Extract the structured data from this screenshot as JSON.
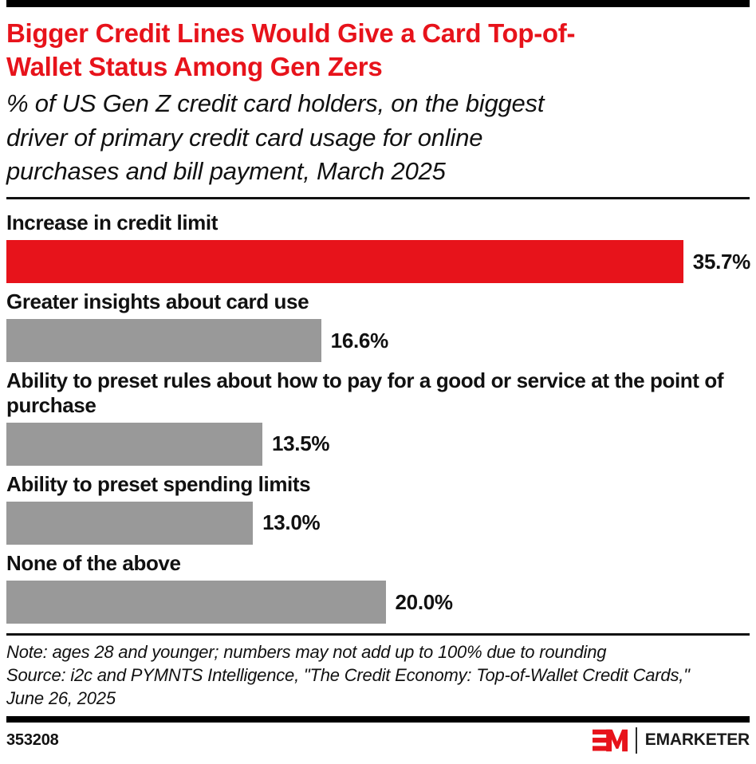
{
  "page": {
    "background": "#ffffff",
    "accent_red": "#E7131B",
    "bar_gray": "#999999",
    "text_black": "#111111"
  },
  "header": {
    "title_lines": [
      "Bigger Credit Lines Would Give a Card Top-of-",
      "Wallet Status Among Gen Zers"
    ],
    "subtitle_lines": [
      "% of US Gen Z credit card holders, on the biggest",
      "driver of primary credit card usage for online",
      "purchases and bill payment, March 2025"
    ]
  },
  "chart_data": {
    "type": "bar",
    "orientation": "horizontal",
    "title": "Bigger Credit Lines Would Give a Card Top-of-Wallet Status Among Gen Zers",
    "subtitle": "% of US Gen Z credit card holders, on the biggest driver of primary credit card usage for online purchases and bill payment, March 2025",
    "categories": [
      "Increase in credit limit",
      "Greater insights about card use",
      "Ability to preset rules about how to pay for a good or service at the point of purchase",
      "Ability to preset spending limits",
      "None of the above"
    ],
    "values": [
      35.7,
      16.6,
      13.5,
      13.0,
      20.0
    ],
    "value_labels": [
      "35.7%",
      "16.6%",
      "13.5%",
      "13.0%",
      "20.0%"
    ],
    "bar_colors": [
      "#E7131B",
      "#999999",
      "#999999",
      "#999999",
      "#999999"
    ],
    "xlim": [
      0,
      39.2
    ],
    "grid": false,
    "legend": false,
    "value_label_position": "right-of-bar",
    "xlabel": "",
    "ylabel": ""
  },
  "footer": {
    "note": "Note: ages 28 and younger; numbers may not add up to 100% due to rounding",
    "source_lines": [
      "Source: i2c and PYMNTS Intelligence, \"The Credit Economy: Top-of-Wallet Credit Cards,\"",
      "June 26, 2025"
    ],
    "chart_id": "353208",
    "brand": "EMARKETER",
    "logo_icon": "emarketer-em-mark"
  }
}
